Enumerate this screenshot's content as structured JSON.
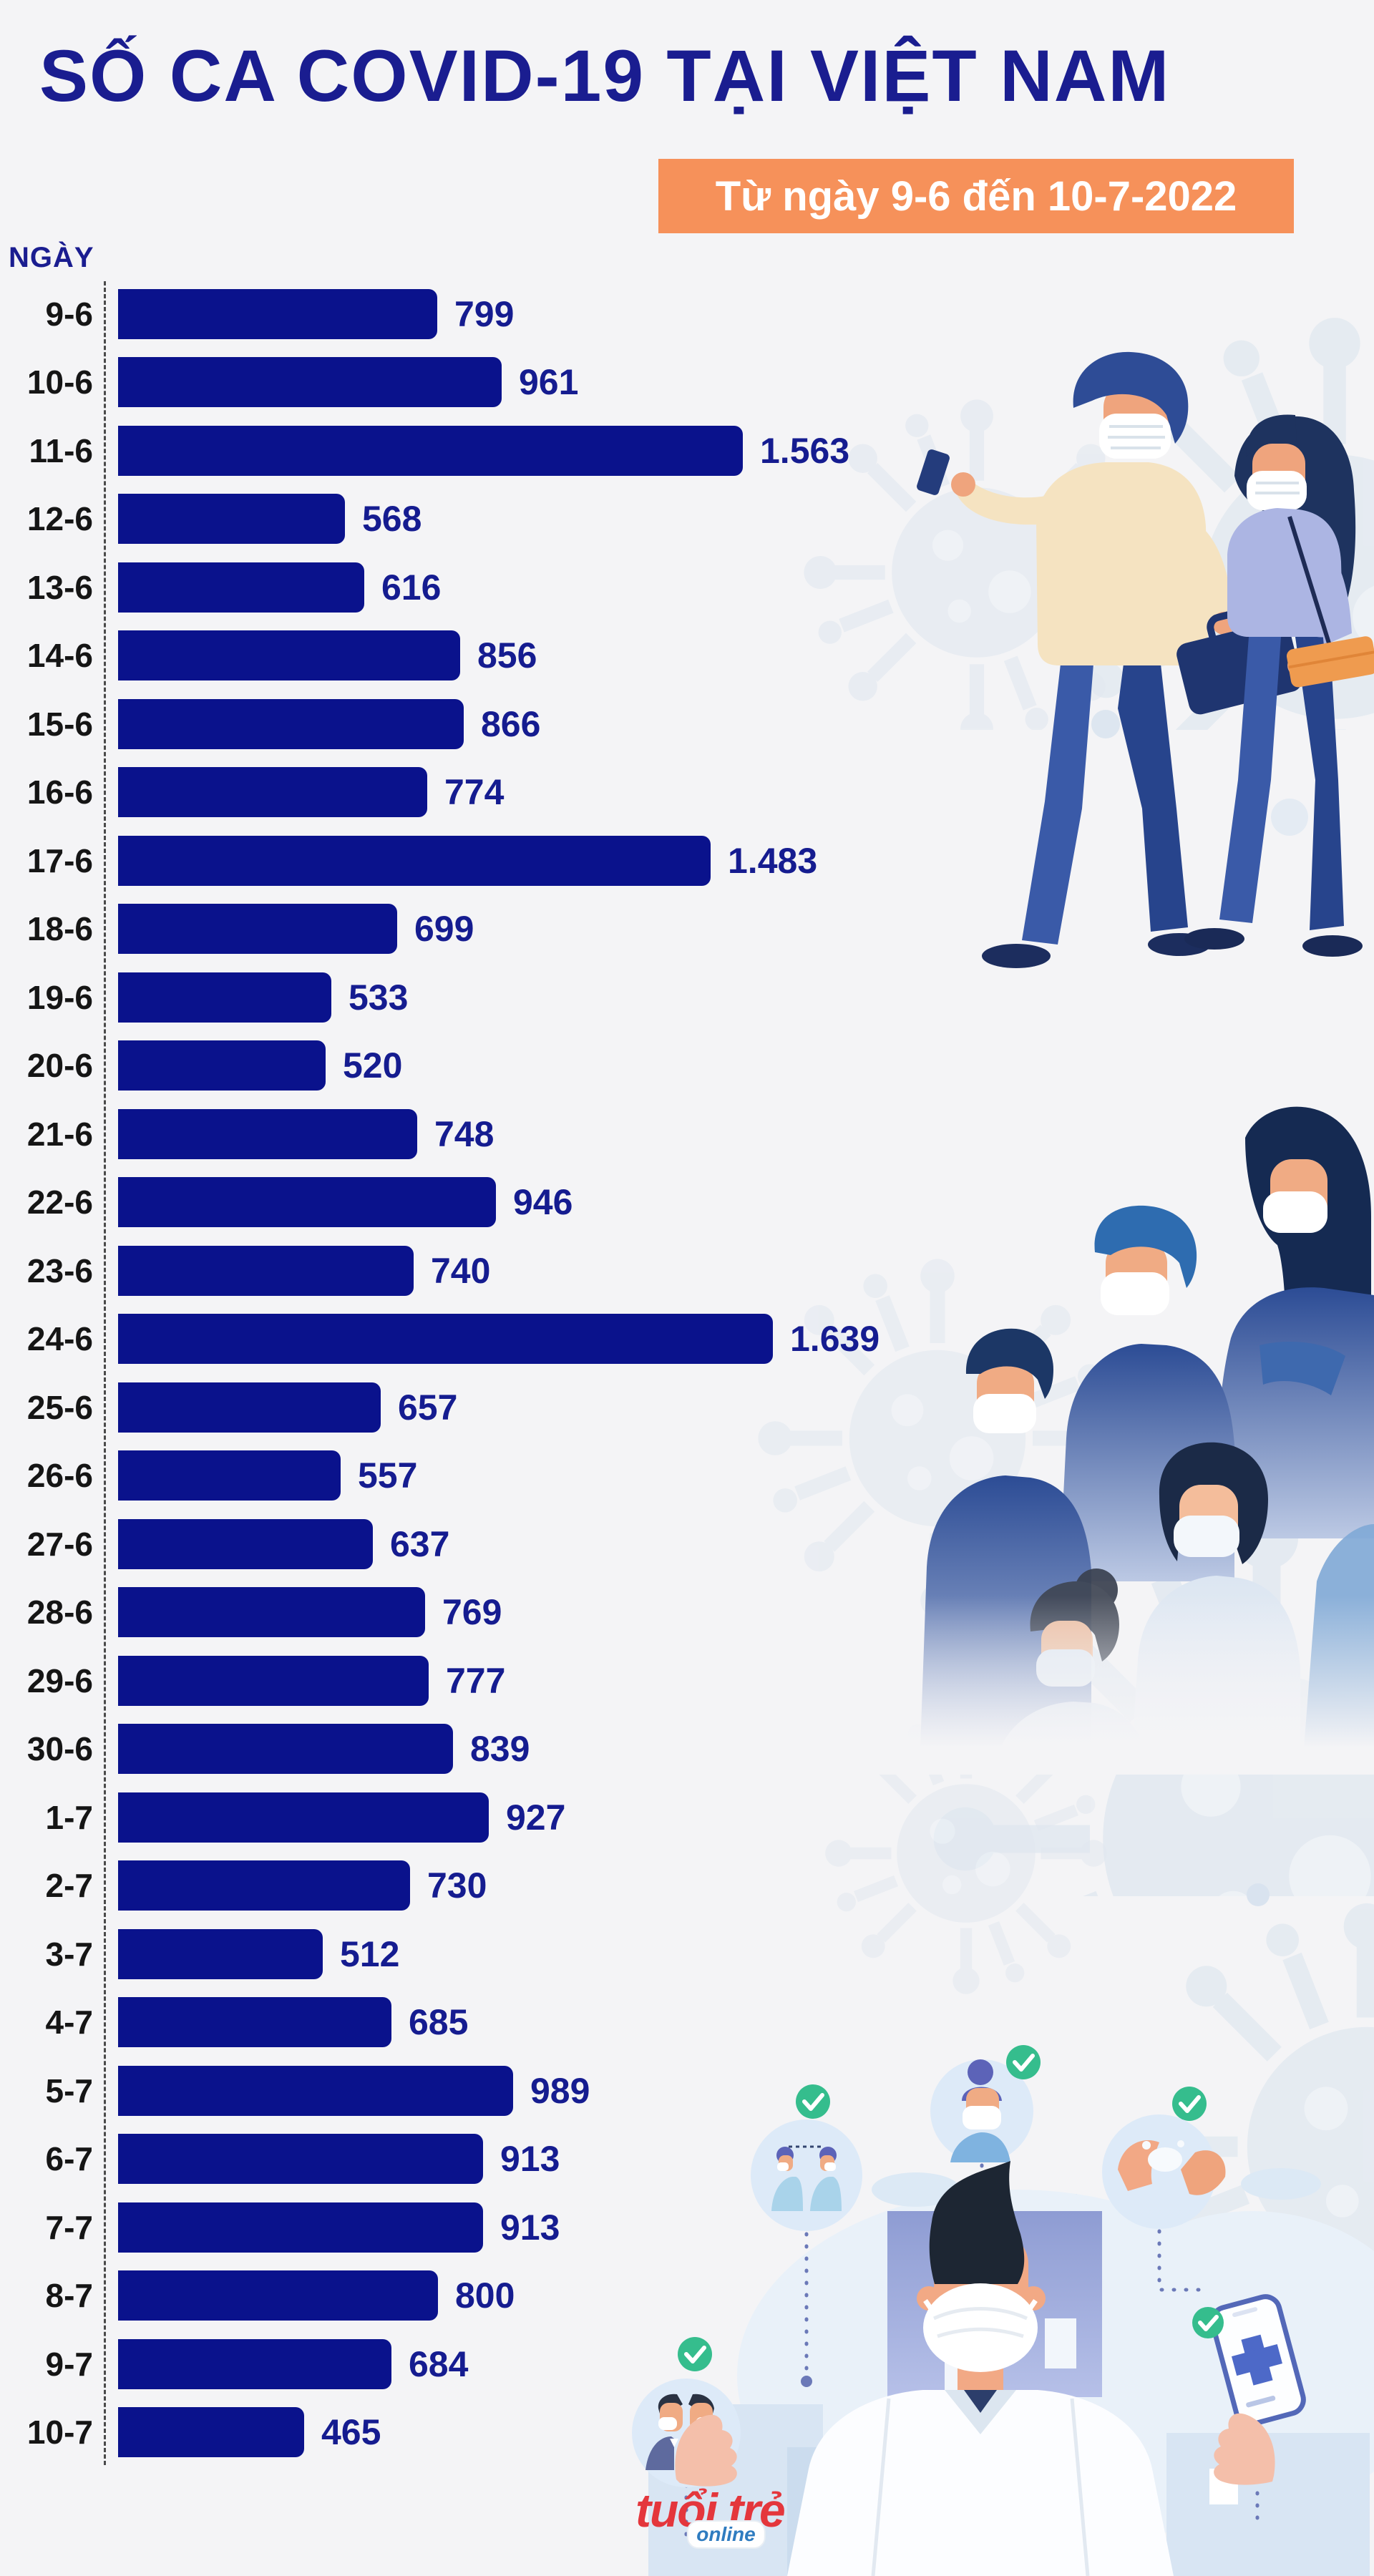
{
  "page": {
    "background": "#F4F4F6"
  },
  "header": {
    "title": "SỐ CA COVID-19 TẠI VIỆT NAM",
    "title_color": "#1A1D90",
    "subtitle": "Từ ngày 9-6 đến 10-7-2022",
    "subtitle_bg": "#F6915A",
    "axis_caption": "NGÀY"
  },
  "chart_data": {
    "type": "bar",
    "orientation": "horizontal",
    "title": "SỐ CA COVID-19 TẠI VIỆT NAM",
    "subtitle": "Từ ngày 9-6 đến 10-7-2022",
    "ylabel": "NGÀY",
    "xlabel": "",
    "grid": false,
    "legend": false,
    "max_value": 1639,
    "bar_color": "#0A128C",
    "value_color": "#151C90",
    "category_color": "#151515",
    "categories": [
      "9-6",
      "10-6",
      "11-6",
      "12-6",
      "13-6",
      "14-6",
      "15-6",
      "16-6",
      "17-6",
      "18-6",
      "19-6",
      "20-6",
      "21-6",
      "22-6",
      "23-6",
      "24-6",
      "25-6",
      "26-6",
      "27-6",
      "28-6",
      "29-6",
      "30-6",
      "1-7",
      "2-7",
      "3-7",
      "4-7",
      "5-7",
      "6-7",
      "7-7",
      "8-7",
      "9-7",
      "10-7"
    ],
    "values": [
      799,
      961,
      1563,
      568,
      616,
      856,
      866,
      774,
      1483,
      699,
      533,
      520,
      748,
      946,
      740,
      1639,
      657,
      557,
      637,
      769,
      777,
      839,
      927,
      730,
      512,
      685,
      989,
      913,
      913,
      800,
      684,
      465
    ],
    "value_labels": [
      "799",
      "961",
      "1.563",
      "568",
      "616",
      "856",
      "866",
      "774",
      "1.483",
      "699",
      "533",
      "520",
      "748",
      "946",
      "740",
      "1.639",
      "657",
      "557",
      "637",
      "769",
      "777",
      "839",
      "927",
      "730",
      "512",
      "685",
      "989",
      "913",
      "913",
      "800",
      "684",
      "465"
    ]
  },
  "illustrations": {
    "top_right": "masked-couple-walking",
    "middle_right": "masked-crowd",
    "bottom": "doctor-prevention-tips",
    "badges": [
      "social-distancing",
      "face-mask",
      "hand-washing",
      "health-app",
      "keep-distance"
    ],
    "check_glyph": "✓",
    "check_color": "#35BD8D",
    "watermark": "coronavirus-watermark"
  },
  "footer": {
    "logo_main": "tuổi trẻ",
    "logo_sub": "online",
    "logo_main_color": "#E4363C",
    "logo_sub_color": "#2F7CC0"
  }
}
